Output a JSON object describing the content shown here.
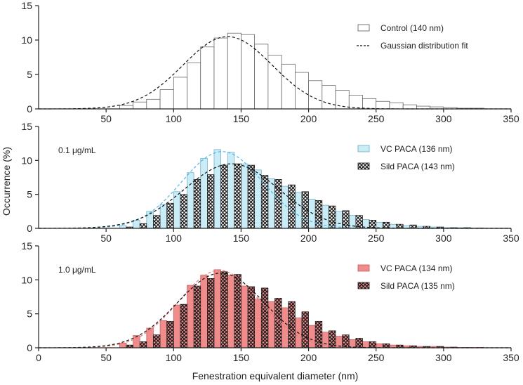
{
  "ylabel": "Occurrence (%)",
  "xlabel": "Fenestration equivalent diameter (nm)",
  "chart_data": [
    {
      "type": "bar",
      "panel": "top",
      "annotation": "",
      "xlim": [
        0,
        350
      ],
      "ylim": [
        0,
        15
      ],
      "x_ticks": [
        "50",
        "100",
        "150",
        "200",
        "250",
        "300",
        "350"
      ],
      "y_ticks": [
        "0",
        "5",
        "10",
        "15"
      ],
      "bin_width_nm": 10,
      "bin_starts": [
        60,
        70,
        80,
        90,
        100,
        110,
        120,
        130,
        140,
        150,
        160,
        170,
        180,
        190,
        200,
        210,
        220,
        230,
        240,
        250,
        260,
        270,
        280,
        290,
        300,
        310,
        320
      ],
      "series": [
        {
          "name": "Control (140 nm)",
          "style": "white",
          "values": [
            0.5,
            1.0,
            1.4,
            2.8,
            4.6,
            6.7,
            9.0,
            10.3,
            11.0,
            10.8,
            9.4,
            7.8,
            6.5,
            5.3,
            4.1,
            3.4,
            2.7,
            2.0,
            1.5,
            1.1,
            0.9,
            0.6,
            0.4,
            0.3,
            0.2,
            0.1,
            0.1
          ]
        }
      ],
      "fits": [
        {
          "name": "Gaussian distribution fit",
          "mean": 140,
          "sd": 33,
          "peak": 10.5,
          "color": "#111111"
        }
      ],
      "legend": [
        {
          "label": "Control (140 nm)",
          "swatch": "white"
        },
        {
          "label": "Gaussian distribution fit",
          "swatch": "dash"
        }
      ]
    },
    {
      "type": "bar",
      "panel": "middle",
      "annotation": "0.1 μg/mL",
      "xlim": [
        0,
        350
      ],
      "ylim": [
        0,
        15
      ],
      "x_ticks": [
        "50",
        "100",
        "150",
        "200",
        "250",
        "300",
        "350"
      ],
      "y_ticks": [
        "0",
        "5",
        "10",
        "15"
      ],
      "bin_width_nm": 10,
      "bin_starts": [
        60,
        70,
        80,
        90,
        100,
        110,
        120,
        130,
        140,
        150,
        160,
        170,
        180,
        190,
        200,
        210,
        220,
        230,
        240,
        250,
        260,
        270,
        280,
        290,
        300,
        310,
        320
      ],
      "series": [
        {
          "name": "VC PACA (136 nm)",
          "style": "blue",
          "values": [
            0.4,
            1.2,
            2.5,
            3.5,
            5.4,
            8.2,
            10.3,
            11.6,
            11.2,
            9.5,
            8.6,
            7.3,
            6.2,
            5.3,
            4.3,
            3.4,
            2.5,
            1.9,
            1.3,
            0.9,
            0.6,
            0.4,
            0.3,
            0.2,
            0.1,
            0.1,
            0.05
          ]
        },
        {
          "name": "Sild PACA (143 nm)",
          "style": "cross-black",
          "values": [
            0.2,
            0.7,
            1.9,
            3.7,
            5.0,
            7.2,
            7.9,
            9.3,
            9.5,
            9.3,
            7.8,
            7.2,
            6.4,
            5.4,
            4.1,
            3.3,
            2.6,
            1.9,
            1.2,
            0.9,
            0.6,
            0.5,
            0.3,
            0.2,
            0.1,
            0.1,
            0.05
          ]
        }
      ],
      "fits": [
        {
          "name": "VC fit",
          "mean": 136,
          "sd": 30,
          "peak": 11.3,
          "color": "#4fb8e6"
        },
        {
          "name": "Sild fit",
          "mean": 143,
          "sd": 35,
          "peak": 9.5,
          "color": "#111111"
        }
      ],
      "legend": [
        {
          "label": "VC PACA (136 nm)",
          "swatch": "blue"
        },
        {
          "label": "Sild PACA (143 nm)",
          "swatch": "cross-black"
        }
      ]
    },
    {
      "type": "bar",
      "panel": "bottom",
      "annotation": "1.0 μg/mL",
      "xlim": [
        0,
        350
      ],
      "ylim": [
        0,
        15
      ],
      "x_ticks": [
        "0",
        "50",
        "100",
        "150",
        "200",
        "250",
        "300",
        "350"
      ],
      "y_ticks": [
        "0",
        "5",
        "10",
        "15"
      ],
      "bin_width_nm": 10,
      "bin_starts": [
        60,
        70,
        80,
        90,
        100,
        110,
        120,
        130,
        140,
        150,
        160,
        170,
        180,
        190,
        200,
        210,
        220,
        230,
        240,
        250,
        260,
        270,
        280,
        290,
        300,
        310,
        320
      ],
      "series": [
        {
          "name": "VC PACA (134 nm)",
          "style": "red",
          "values": [
            0.7,
            1.8,
            2.9,
            4.0,
            6.3,
            9.2,
            10.7,
            11.5,
            10.7,
            9.1,
            7.2,
            6.8,
            5.9,
            4.4,
            3.3,
            2.3,
            1.7,
            1.2,
            0.9,
            0.6,
            0.4,
            0.3,
            0.2,
            0.2,
            0.1,
            0.05,
            0.05
          ]
        },
        {
          "name": "Sild PACA (135 nm)",
          "style": "cross-red",
          "values": [
            0.4,
            0.9,
            1.9,
            3.9,
            6.4,
            9.1,
            10.2,
            11.2,
            10.8,
            9.0,
            8.8,
            7.3,
            6.8,
            5.3,
            3.9,
            2.5,
            1.9,
            1.4,
            0.9,
            0.6,
            0.4,
            0.3,
            0.2,
            0.2,
            0.1,
            0.05,
            0.05
          ]
        }
      ],
      "fits": [
        {
          "name": "VC fit",
          "mean": 134,
          "sd": 30,
          "peak": 11.4,
          "color": "#e87a7a"
        },
        {
          "name": "Sild fit",
          "mean": 135,
          "sd": 32,
          "peak": 11.0,
          "color": "#111111"
        }
      ],
      "legend": [
        {
          "label": "VC PACA (134 nm)",
          "swatch": "red"
        },
        {
          "label": "Sild PACA (135 nm)",
          "swatch": "cross-red"
        }
      ]
    }
  ]
}
